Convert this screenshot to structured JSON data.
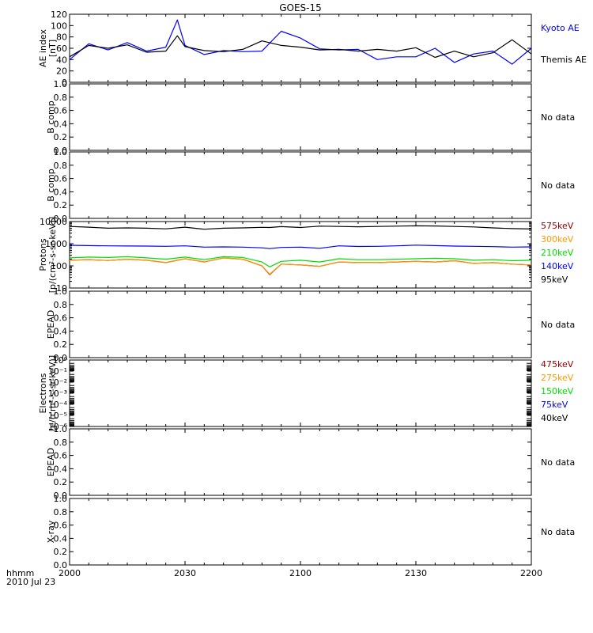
{
  "title": "GOES-15",
  "time_axis": {
    "ticks": [
      "2000",
      "2030",
      "2100",
      "2130",
      "2200"
    ],
    "unit_label": "hhmm",
    "date_label": "2010 Jul 23"
  },
  "chart_data": [
    {
      "type": "line",
      "panel": "ae_index",
      "ylabel": [
        "AE index",
        "[nT]"
      ],
      "ylim": [
        0,
        120
      ],
      "yticks": [
        "0",
        "20",
        "40",
        "60",
        "80",
        "100",
        "120"
      ],
      "x": [
        "2000",
        "2005",
        "2010",
        "2015",
        "2020",
        "2025",
        "2028",
        "2030",
        "2035",
        "2040",
        "2045",
        "2050",
        "2055",
        "2100",
        "2105",
        "2110",
        "2115",
        "2120",
        "2125",
        "2130",
        "2135",
        "2140",
        "2145",
        "2150",
        "2155",
        "2200"
      ],
      "series": [
        {
          "name": "Kyoto AE",
          "color": "#0000ff",
          "values": [
            40,
            68,
            57,
            70,
            55,
            62,
            110,
            65,
            49,
            56,
            54,
            55,
            90,
            78,
            59,
            57,
            58,
            40,
            45,
            45,
            60,
            35,
            50,
            55,
            32,
            60
          ]
        },
        {
          "name": "Themis AE",
          "color": "#000000",
          "values": [
            45,
            65,
            60,
            66,
            53,
            55,
            82,
            63,
            56,
            54,
            58,
            73,
            65,
            62,
            57,
            58,
            55,
            58,
            55,
            61,
            44,
            55,
            45,
            52,
            75,
            50
          ]
        }
      ]
    },
    {
      "type": "line",
      "panel": "b_comp_1",
      "ylabel": [
        "B comp"
      ],
      "ylim": [
        0,
        1
      ],
      "yticks": [
        "0.0",
        "0.2",
        "0.4",
        "0.6",
        "0.8",
        "1.0"
      ],
      "note": "No data",
      "series": []
    },
    {
      "type": "line",
      "panel": "b_comp_2",
      "ylabel": [
        "B comp"
      ],
      "ylim": [
        0,
        1
      ],
      "yticks": [
        "0.0",
        "0.2",
        "0.4",
        "0.6",
        "0.8",
        "1.0"
      ],
      "note": "No data",
      "series": []
    },
    {
      "type": "line",
      "panel": "protons",
      "log_scale": true,
      "ylabel": [
        "Protons",
        "[p/(cm²-s-sr-keV)]"
      ],
      "ylim": [
        10,
        10000
      ],
      "yticks": [
        "10",
        "100",
        "1000",
        "10000"
      ],
      "x": [
        "2000",
        "2005",
        "2010",
        "2015",
        "2020",
        "2025",
        "2030",
        "2035",
        "2040",
        "2045",
        "2050",
        "2052",
        "2055",
        "2100",
        "2105",
        "2110",
        "2115",
        "2120",
        "2125",
        "2130",
        "2135",
        "2140",
        "2145",
        "2150",
        "2155",
        "2200"
      ],
      "series": [
        {
          "name": "575keV",
          "color": "#8b0000",
          "values": [
            180,
            190,
            175,
            200,
            180,
            140,
            210,
            150,
            230,
            200,
            100,
            40,
            120,
            110,
            95,
            150,
            140,
            140,
            150,
            160,
            150,
            170,
            130,
            140,
            120,
            110
          ]
        },
        {
          "name": "300keV",
          "color": "#ff9900",
          "values": [
            180,
            190,
            175,
            200,
            180,
            140,
            210,
            150,
            230,
            200,
            100,
            42,
            120,
            110,
            95,
            150,
            140,
            140,
            150,
            160,
            150,
            170,
            130,
            140,
            120,
            110
          ]
        },
        {
          "name": "210keV",
          "color": "#00dd00",
          "values": [
            230,
            250,
            240,
            260,
            230,
            200,
            250,
            190,
            260,
            240,
            150,
            90,
            160,
            180,
            150,
            210,
            190,
            190,
            200,
            210,
            220,
            210,
            180,
            190,
            170,
            180
          ]
        },
        {
          "name": "140keV",
          "color": "#0000ff",
          "values": [
            850,
            820,
            800,
            790,
            780,
            760,
            800,
            700,
            720,
            700,
            650,
            600,
            680,
            700,
            620,
            800,
            750,
            760,
            800,
            860,
            820,
            780,
            760,
            740,
            700,
            720
          ]
        },
        {
          "name": "95keV",
          "color": "#000000",
          "values": [
            6000,
            5600,
            5000,
            5200,
            5000,
            4700,
            5600,
            4500,
            5000,
            5200,
            5500,
            5400,
            5900,
            5400,
            6200,
            6000,
            5800,
            6000,
            6200,
            6400,
            6300,
            6000,
            5700,
            5200,
            4800,
            4600
          ]
        }
      ]
    },
    {
      "type": "line",
      "panel": "epead_1",
      "ylabel": [
        "EPEAD"
      ],
      "ylim": [
        0,
        1
      ],
      "yticks": [
        "0.0",
        "0.2",
        "0.4",
        "0.6",
        "0.8",
        "1.0"
      ],
      "note": "No data",
      "series": []
    },
    {
      "type": "line",
      "panel": "electrons",
      "log_scale": true,
      "ylabel": [
        "Electrons",
        "[e/(cm²-s-sr-keV)]"
      ],
      "ylim": [
        1e-06,
        1
      ],
      "yticks": [
        "10⁰",
        "10⁻¹",
        "10⁻²",
        "10⁻³",
        "10⁻⁴",
        "10⁻⁵",
        "10⁻⁶"
      ],
      "series": [
        {
          "name": "475keV",
          "color": "#8b0000",
          "values": []
        },
        {
          "name": "275keV",
          "color": "#ff9900",
          "values": []
        },
        {
          "name": "150keV",
          "color": "#00dd00",
          "values": []
        },
        {
          "name": "75keV",
          "color": "#0000ff",
          "values": []
        },
        {
          "name": "40keV",
          "color": "#000000",
          "values": []
        }
      ]
    },
    {
      "type": "line",
      "panel": "epead_2",
      "ylabel": [
        "EPEAD"
      ],
      "ylim": [
        0,
        1
      ],
      "yticks": [
        "0.0",
        "0.2",
        "0.4",
        "0.6",
        "0.8",
        "1.0"
      ],
      "note": "No data",
      "series": []
    },
    {
      "type": "line",
      "panel": "xray",
      "ylabel": [
        "X-ray"
      ],
      "ylim": [
        0,
        1
      ],
      "yticks": [
        "0.0",
        "0.2",
        "0.4",
        "0.6",
        "0.8",
        "1.0"
      ],
      "note": "No data",
      "series": []
    }
  ]
}
